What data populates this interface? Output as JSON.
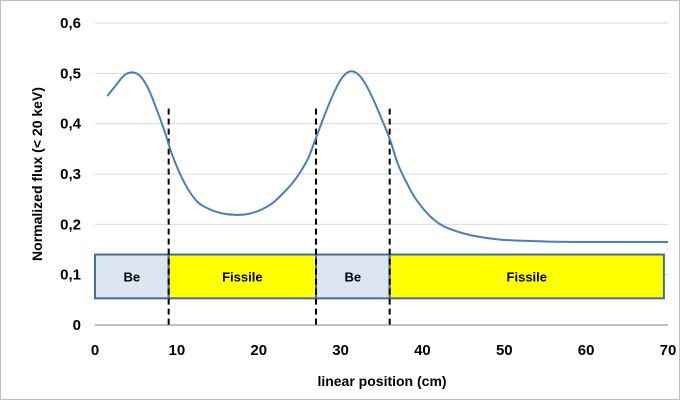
{
  "chart_data": {
    "type": "line",
    "xlabel": "linear position (cm)",
    "ylabel": "Normalized flux (< 20 keV)",
    "xlim": [
      0,
      70
    ],
    "ylim": [
      0,
      0.6
    ],
    "x_ticks": [
      "0",
      "10",
      "20",
      "30",
      "40",
      "50",
      "60",
      "70"
    ],
    "y_ticks": [
      "0",
      "0,1",
      "0,2",
      "0,3",
      "0,4",
      "0,5",
      "0,6"
    ],
    "grid": "horizontal",
    "line_color": "#4a7ebb",
    "series": [
      {
        "x": [
          1.5,
          2.5,
          3.5,
          4.5,
          5.5,
          6.5,
          7.5,
          8.5,
          9.5,
          11,
          12.5,
          14,
          15.5,
          17,
          18.5,
          20,
          21.5,
          23,
          24.5,
          26,
          27,
          28,
          29,
          30,
          31,
          32,
          33,
          34,
          35,
          36,
          37,
          38,
          39,
          40,
          41,
          42,
          43,
          45,
          47,
          50,
          55,
          60,
          65,
          70
        ],
        "y": [
          0.455,
          0.475,
          0.495,
          0.502,
          0.495,
          0.47,
          0.43,
          0.385,
          0.335,
          0.28,
          0.245,
          0.23,
          0.222,
          0.219,
          0.22,
          0.227,
          0.24,
          0.262,
          0.29,
          0.33,
          0.372,
          0.415,
          0.455,
          0.487,
          0.503,
          0.5,
          0.48,
          0.448,
          0.41,
          0.37,
          0.32,
          0.285,
          0.255,
          0.233,
          0.215,
          0.202,
          0.193,
          0.182,
          0.175,
          0.169,
          0.166,
          0.165,
          0.165,
          0.165
        ]
      }
    ],
    "dividers_x": [
      9,
      27,
      36
    ],
    "regions": [
      {
        "label": "Be",
        "x_start": 0,
        "x_end": 9,
        "color": "#dce6f2"
      },
      {
        "label": "Fissile",
        "x_start": 9,
        "x_end": 27,
        "color": "#ffff00"
      },
      {
        "label": "Be",
        "x_start": 27,
        "x_end": 36,
        "color": "#dce6f2"
      },
      {
        "label": "Fissile",
        "x_start": 36,
        "x_end": 69.5,
        "color": "#ffff00"
      }
    ],
    "region_band_y": [
      0.053,
      0.14
    ],
    "region_border_color": "#4a6c9b"
  }
}
